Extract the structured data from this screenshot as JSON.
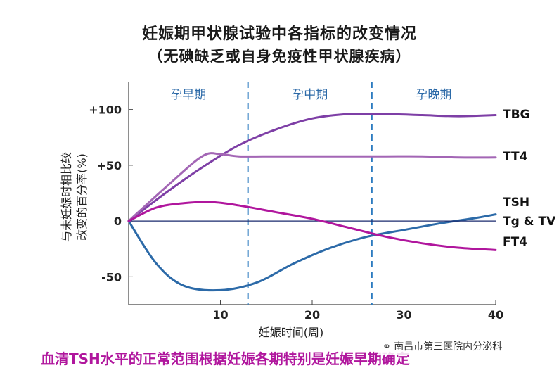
{
  "chart_data": {
    "type": "line",
    "title": "妊娠期甲状腺试验中各指标的改变情况",
    "subtitle": "（无碘缺乏或自身免疫性甲状腺疾病）",
    "xlabel": "妊娠时间(周)",
    "ylabel_line1": "与未妊娠时相比较",
    "ylabel_line2": "改变的百分率(%)",
    "xlim": [
      0,
      40
    ],
    "ylim": [
      -75,
      125
    ],
    "x_ticks": [
      10,
      20,
      30,
      40
    ],
    "y_ticks": [
      {
        "value": 100,
        "label": "+100"
      },
      {
        "value": 50,
        "label": "+50"
      },
      {
        "value": 0,
        "label": "0"
      },
      {
        "value": -50,
        "label": "-50"
      }
    ],
    "periods": [
      {
        "label": "孕早期",
        "from": 0,
        "to": 13
      },
      {
        "label": "孕中期",
        "from": 13,
        "to": 26.5
      },
      {
        "label": "孕晚期",
        "from": 26.5,
        "to": 40
      }
    ],
    "period_dividers": [
      13,
      26.5
    ],
    "series": [
      {
        "name": "TBG",
        "color": "#7e3fa6",
        "x": [
          0,
          4,
          8,
          12,
          16,
          20,
          24,
          28,
          32,
          36,
          40
        ],
        "y": [
          0,
          25,
          48,
          68,
          82,
          92,
          96,
          96,
          95,
          94,
          95
        ]
      },
      {
        "name": "TT4",
        "color": "#a366b5",
        "x": [
          0,
          4,
          8,
          10,
          12,
          16,
          20,
          24,
          28,
          32,
          36,
          40
        ],
        "y": [
          0,
          30,
          58,
          60,
          58,
          58,
          58,
          58,
          58,
          58,
          57,
          57
        ]
      },
      {
        "name": "TSH",
        "color": "#2c6aa8",
        "x": [
          0,
          3,
          6,
          10,
          14,
          18,
          22,
          26,
          30,
          34,
          38,
          40
        ],
        "y": [
          0,
          -38,
          -58,
          -62,
          -55,
          -38,
          -24,
          -14,
          -8,
          -2,
          3,
          6
        ]
      },
      {
        "name": "Tg & TV",
        "color": "#1a2a6e",
        "x": [
          0,
          40
        ],
        "y": [
          0,
          0
        ]
      },
      {
        "name": "FT4",
        "color": "#b0169d",
        "x": [
          0,
          3,
          6,
          9,
          12,
          16,
          20,
          24,
          28,
          32,
          36,
          40
        ],
        "y": [
          0,
          12,
          16,
          17,
          14,
          8,
          2,
          -6,
          -14,
          -20,
          -24,
          -26
        ]
      }
    ]
  },
  "footer": "血清TSH水平的正常范围根据妊娠各期特别是妊娠早期确定",
  "watermark": "南昌市第三医院内分泌科",
  "watermark_icon": "wechat-icon"
}
